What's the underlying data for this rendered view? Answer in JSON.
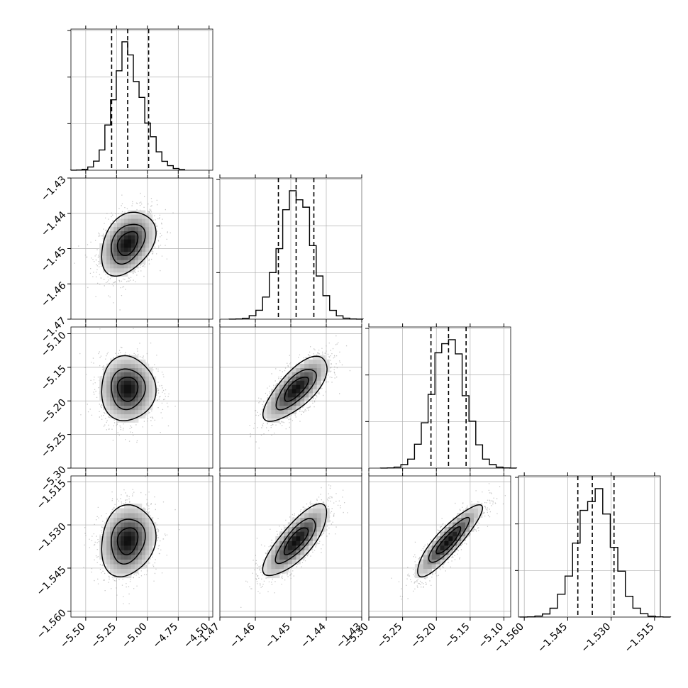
{
  "chart_data": {
    "type": "corner",
    "grid": true,
    "parameters": [
      {
        "lim": [
          -5.62,
          -4.47
        ],
        "ticks": [
          "-5.50",
          "-5.25",
          "-5.00",
          "-4.75",
          "-4.50"
        ],
        "tick_values": [
          -5.5,
          -5.25,
          -5.0,
          -4.75,
          -4.5
        ],
        "quantiles": [
          -5.29,
          -5.16,
          -4.99
        ],
        "mean": -5.16,
        "sd": 0.11
      },
      {
        "lim": [
          -1.47,
          -1.43
        ],
        "ticks": [
          "-1.47",
          "-1.46",
          "-1.45",
          "-1.44",
          "-1.43"
        ],
        "tick_values": [
          -1.47,
          -1.46,
          -1.45,
          -1.44,
          -1.43
        ],
        "quantiles": [
          -1.4535,
          -1.4485,
          -1.4435
        ],
        "mean": -1.4485,
        "sd": 0.0045
      },
      {
        "lim": [
          -5.3,
          -5.09
        ],
        "ticks": [
          "-5.30",
          "-5.25",
          "-5.20",
          "-5.15",
          "-5.10"
        ],
        "tick_values": [
          -5.3,
          -5.25,
          -5.2,
          -5.15,
          -5.1
        ],
        "quantiles": [
          -5.208,
          -5.182,
          -5.156
        ],
        "mean": -5.182,
        "sd": 0.024
      },
      {
        "lim": [
          -1.562,
          -1.513
        ],
        "ticks": [
          "-1.560",
          "-1.545",
          "-1.530",
          "-1.515"
        ],
        "tick_values": [
          -1.56,
          -1.545,
          -1.53,
          -1.515
        ],
        "quantiles": [
          -1.5415,
          -1.5365,
          -1.529
        ],
        "mean": -1.5355,
        "sd": 0.0062
      }
    ],
    "correlations": [
      {
        "row": 1,
        "col": 0,
        "r": 0.35
      },
      {
        "row": 2,
        "col": 0,
        "r": 0.0
      },
      {
        "row": 2,
        "col": 1,
        "r": 0.72
      },
      {
        "row": 3,
        "col": 0,
        "r": 0.15
      },
      {
        "row": 3,
        "col": 1,
        "r": 0.78
      },
      {
        "row": 3,
        "col": 2,
        "r": 0.88
      }
    ],
    "colors": {
      "line": "#000000",
      "grid": "#b0b0b0",
      "points": "#9a9a9a",
      "density_dark": "#000000",
      "density_light": "#ffffff"
    }
  }
}
